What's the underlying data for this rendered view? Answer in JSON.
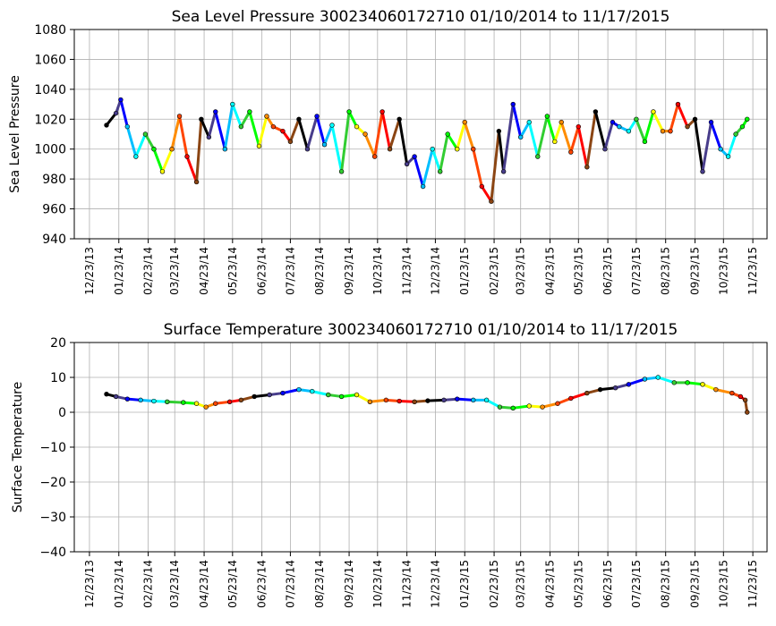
{
  "chart_data": [
    {
      "type": "line",
      "title": "Sea Level Pressure 300234060172710  01/10/2014 to 11/17/2015",
      "ylabel": "Sea Level Pressure",
      "xlabel": "",
      "x_ticks": [
        "12/23/13",
        "01/23/14",
        "02/23/14",
        "03/23/14",
        "04/23/14",
        "05/23/14",
        "06/23/14",
        "07/23/14",
        "08/23/14",
        "09/23/14",
        "10/23/14",
        "11/23/14",
        "12/23/14",
        "01/23/15",
        "02/23/15",
        "03/23/15",
        "04/23/15",
        "05/23/15",
        "06/23/15",
        "07/23/15",
        "08/23/15",
        "09/23/15",
        "10/23/15",
        "11/23/15"
      ],
      "y_ticks": [
        940,
        960,
        980,
        1000,
        1020,
        1040,
        1060,
        1080
      ],
      "ylim": [
        940,
        1080
      ],
      "xlim": [
        "12/07/2013",
        "12/08/2015"
      ],
      "grid": true,
      "marker": "dot",
      "color_cycle": [
        "#000000",
        "#483d8b",
        "#0000ff",
        "#00bfff",
        "#00ffff",
        "#32cd32",
        "#00ff00",
        "#ffff00",
        "#ff8c00",
        "#ff4500",
        "#ff0000",
        "#8b4513"
      ],
      "x": [
        "01/10/2014",
        "01/20/2014",
        "01/25/2014",
        "02/01/2014",
        "02/10/2014",
        "02/20/2014",
        "03/01/2014",
        "03/10/2014",
        "03/20/2014",
        "03/28/2014",
        "04/05/2014",
        "04/15/2014",
        "04/20/2014",
        "04/28/2014",
        "05/05/2014",
        "05/15/2014",
        "05/23/2014",
        "06/01/2014",
        "06/10/2014",
        "06/20/2014",
        "06/28/2014",
        "07/05/2014",
        "07/15/2014",
        "07/23/2014",
        "08/01/2014",
        "08/10/2014",
        "08/20/2014",
        "08/28/2014",
        "09/05/2014",
        "09/15/2014",
        "09/23/2014",
        "10/01/2014",
        "10/10/2014",
        "10/20/2014",
        "10/28/2014",
        "11/05/2014",
        "11/15/2014",
        "11/23/2014",
        "12/01/2014",
        "12/10/2014",
        "12/20/2014",
        "12/28/2014",
        "01/05/2015",
        "01/15/2015",
        "01/23/2015",
        "02/01/2015",
        "02/10/2015",
        "02/20/2015",
        "02/28/2015",
        "03/05/2015",
        "03/15/2015",
        "03/23/2015",
        "04/01/2015",
        "04/10/2015",
        "04/20/2015",
        "04/28/2015",
        "05/05/2015",
        "05/15/2015",
        "05/23/2015",
        "06/01/2015",
        "06/10/2015",
        "06/20/2015",
        "06/28/2015",
        "07/05/2015",
        "07/15/2015",
        "07/23/2015",
        "08/01/2015",
        "08/10/2015",
        "08/20/2015",
        "08/28/2015",
        "09/05/2015",
        "09/15/2015",
        "09/23/2015",
        "10/01/2015",
        "10/10/2015",
        "10/20/2015",
        "10/28/2015",
        "11/05/2015",
        "11/12/2015",
        "11/17/2015"
      ],
      "y": [
        1016,
        1024,
        1033,
        1015,
        995,
        1010,
        1000,
        985,
        1000,
        1022,
        995,
        978,
        1020,
        1008,
        1025,
        1000,
        1030,
        1015,
        1025,
        1002,
        1022,
        1015,
        1012,
        1005,
        1020,
        1000,
        1022,
        1003,
        1016,
        985,
        1025,
        1015,
        1010,
        995,
        1025,
        1000,
        1020,
        990,
        995,
        975,
        1000,
        985,
        1010,
        1000,
        1018,
        1000,
        975,
        965,
        1012,
        985,
        1030,
        1008,
        1018,
        995,
        1022,
        1005,
        1018,
        998,
        1015,
        988,
        1025,
        1000,
        1018,
        1015,
        1012,
        1020,
        1005,
        1025,
        1012,
        1012,
        1030,
        1015,
        1020,
        985,
        1018,
        1000,
        995,
        1010,
        1015,
        1020
      ]
    },
    {
      "type": "line",
      "title": "Surface Temperature 300234060172710  01/10/2014 to 11/17/2015",
      "ylabel": "Surface Temperature",
      "xlabel": "",
      "x_ticks": [
        "12/23/13",
        "01/23/14",
        "02/23/14",
        "03/23/14",
        "04/23/14",
        "05/23/14",
        "06/23/14",
        "07/23/14",
        "08/23/14",
        "09/23/14",
        "10/23/14",
        "11/23/14",
        "12/23/14",
        "01/23/15",
        "02/23/15",
        "03/23/15",
        "04/23/15",
        "05/23/15",
        "06/23/15",
        "07/23/15",
        "08/23/15",
        "09/23/15",
        "10/23/15",
        "11/23/15"
      ],
      "y_ticks": [
        -40,
        -30,
        -20,
        -10,
        0,
        10,
        20
      ],
      "ylim": [
        -40,
        20
      ],
      "xlim": [
        "12/07/2013",
        "12/08/2015"
      ],
      "grid": true,
      "marker": "dot",
      "color_cycle": [
        "#000000",
        "#483d8b",
        "#0000ff",
        "#00bfff",
        "#00ffff",
        "#32cd32",
        "#00ff00",
        "#ffff00",
        "#ff8c00",
        "#ff4500",
        "#ff0000",
        "#8b4513"
      ],
      "x": [
        "01/10/2014",
        "01/20/2014",
        "02/01/2014",
        "02/15/2014",
        "03/01/2014",
        "03/15/2014",
        "04/01/2014",
        "04/15/2014",
        "04/25/2014",
        "05/05/2014",
        "05/20/2014",
        "06/01/2014",
        "06/15/2014",
        "07/01/2014",
        "07/15/2014",
        "08/01/2014",
        "08/15/2014",
        "09/01/2014",
        "09/15/2014",
        "10/01/2014",
        "10/15/2014",
        "11/01/2014",
        "11/15/2014",
        "12/01/2014",
        "12/15/2014",
        "01/01/2015",
        "01/15/2015",
        "02/01/2015",
        "02/15/2015",
        "03/01/2015",
        "03/15/2015",
        "04/01/2015",
        "04/15/2015",
        "05/01/2015",
        "05/15/2015",
        "06/01/2015",
        "06/15/2015",
        "07/01/2015",
        "07/15/2015",
        "08/01/2015",
        "08/15/2015",
        "09/01/2015",
        "09/15/2015",
        "10/01/2015",
        "10/15/2015",
        "11/01/2015",
        "11/10/2015",
        "11/15/2015",
        "11/17/2015"
      ],
      "y": [
        5.2,
        4.5,
        3.8,
        3.5,
        3.2,
        3.0,
        2.8,
        2.5,
        1.5,
        2.5,
        3.0,
        3.5,
        4.5,
        5.0,
        5.5,
        6.5,
        6.0,
        5.0,
        4.5,
        5.0,
        3.0,
        3.5,
        3.2,
        3.0,
        3.3,
        3.5,
        3.8,
        3.5,
        3.5,
        1.5,
        1.2,
        1.8,
        1.5,
        2.5,
        4.0,
        5.5,
        6.5,
        7.0,
        8.0,
        9.5,
        10.0,
        8.5,
        8.5,
        8.0,
        6.5,
        5.5,
        4.5,
        3.5,
        0
      ]
    }
  ]
}
